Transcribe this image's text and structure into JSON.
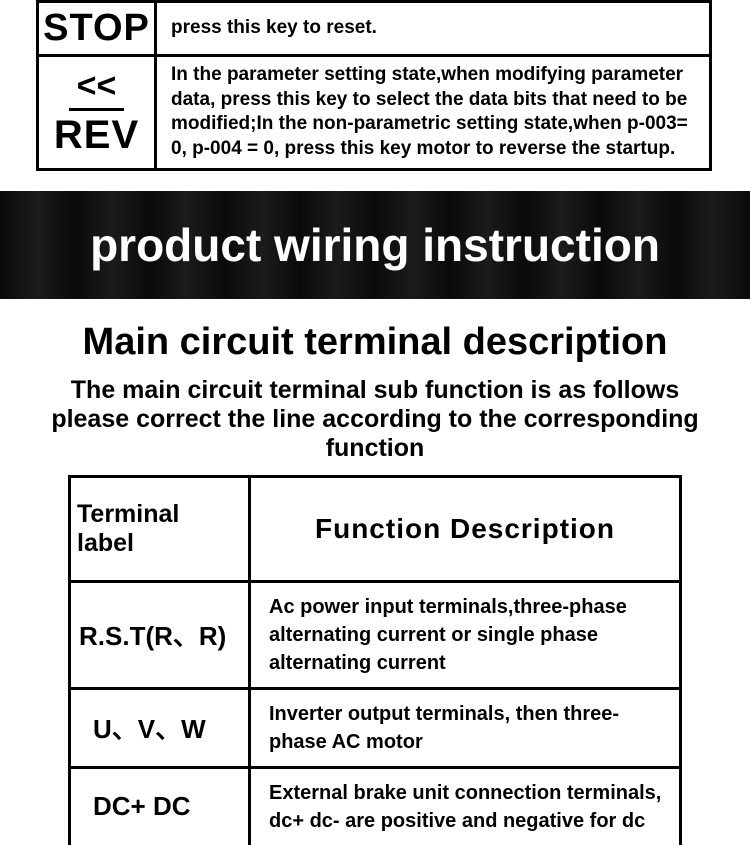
{
  "topTable": {
    "rows": [
      {
        "key_top": "STOP",
        "key_bottom": "",
        "desc": "press this key to reset."
      },
      {
        "key_top": "<<",
        "key_bottom": "REV",
        "desc": "In the parameter setting state,when modifying parameter data, press this key to select the data bits that need to be modified;In the non-parametric setting state,when p-003= 0, p-004 = 0, press this key motor to reverse the startup."
      }
    ]
  },
  "banner": {
    "title": "product wiring instruction"
  },
  "section": {
    "title": "Main circuit terminal description",
    "sub1": "The main circuit terminal sub function is as follows",
    "sub2": "please correct the line according to the corresponding function"
  },
  "termTable": {
    "headers": {
      "left": "Terminal label",
      "right": "Function Description"
    },
    "rows": [
      {
        "label": "R.S.T(R、R)",
        "desc": "Ac power input terminals,three-phase alternating current or single phase alternating current"
      },
      {
        "label": "U、V、W",
        "desc": "Inverter output terminals, then three-phase AC motor"
      },
      {
        "label": "DC+ DC",
        "desc": "External brake unit connection terminals, dc+ dc- are positive and negative for dc"
      }
    ]
  }
}
